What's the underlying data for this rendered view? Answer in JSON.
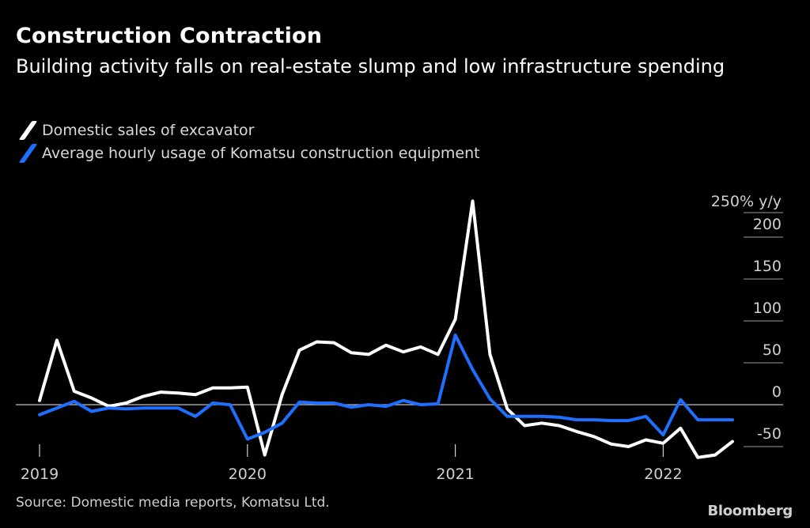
{
  "title": "Construction Contraction",
  "subtitle": "Building activity falls on real-estate slump and low infrastructure spending",
  "source": "Source: Domestic media reports, Komatsu Ltd.",
  "brand": "Bloomberg",
  "colors": {
    "series1": "#ffffff",
    "series2": "#1f6fff",
    "grid": "#bfbfbf"
  },
  "chart_data": {
    "type": "line",
    "title": "Construction Contraction",
    "subtitle": "Building activity falls on real-estate slump and low infrastructure spending",
    "ylabel": "y/y",
    "y_unit_label": "250% y/y",
    "ylim": [
      -50,
      250
    ],
    "y_ticks": [
      -50,
      0,
      50,
      100,
      150,
      200
    ],
    "x_tick_labels": [
      "2019",
      "2020",
      "2021",
      "2022"
    ],
    "x_tick_months": [
      0,
      12,
      24,
      36
    ],
    "xlim_months": [
      0,
      40
    ],
    "grid": true,
    "legend_position": "top-left",
    "series": [
      {
        "name": "Domestic sales of excavator",
        "color": "#ffffff",
        "start": "2019-01",
        "values": [
          5,
          77,
          16,
          8,
          -2,
          2,
          10,
          15,
          14,
          12,
          20,
          20,
          21,
          -60,
          12,
          65,
          75,
          74,
          62,
          60,
          71,
          63,
          69,
          60,
          102,
          243,
          60,
          -5,
          -25,
          -22,
          -25,
          -32,
          -38,
          -47,
          -50,
          -42,
          -46,
          -28,
          -63,
          -60,
          -44
        ],
        "last_label": ""
      },
      {
        "name": "Average hourly usage of Komatsu construction equipment",
        "color": "#1f6fff",
        "start": "2019-01",
        "values": [
          -12,
          -4,
          4,
          -8,
          -4,
          -5,
          -4,
          -4,
          -4,
          -14,
          2,
          0,
          -41,
          -33,
          -22,
          3,
          2,
          2,
          -3,
          0,
          -2,
          5,
          0,
          1,
          83,
          42,
          7,
          -14,
          -14,
          -14,
          -15,
          -18,
          -18,
          -19,
          -19,
          -14,
          -36,
          6,
          -18,
          -18,
          -18
        ]
      }
    ]
  }
}
